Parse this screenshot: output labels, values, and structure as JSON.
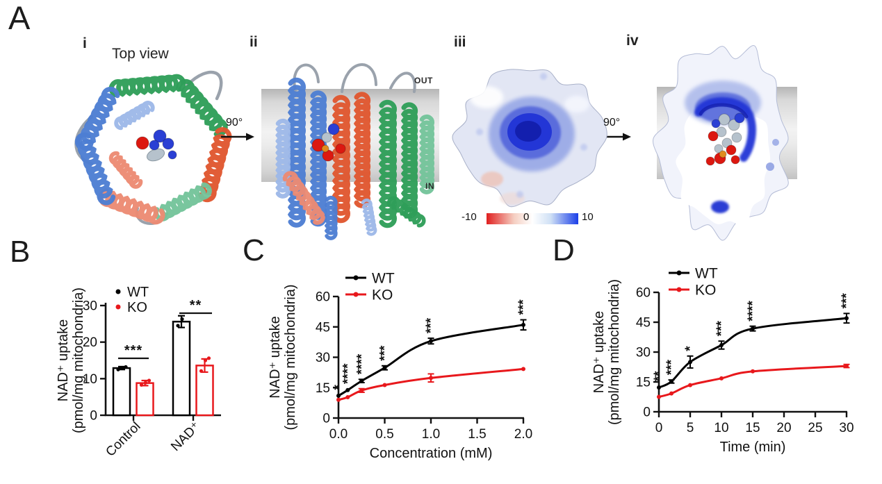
{
  "panel_a": {
    "label": "A",
    "views": [
      {
        "index": "i",
        "title": "Top view"
      },
      {
        "index": "ii",
        "out_label": "OUT",
        "in_label": "IN"
      },
      {
        "index": "iii",
        "colorbar": {
          "min": "-10",
          "mid": "0",
          "max": "10"
        }
      },
      {
        "index": "iv"
      }
    ],
    "rotations": [
      {
        "label": "90°"
      },
      {
        "label": "90°"
      }
    ],
    "colors": {
      "ribbon_green": "#2f9e58",
      "ribbon_green_light": "#74c49a",
      "ribbon_blue": "#4d7ed2",
      "ribbon_blue_light": "#9db8e8",
      "ribbon_red": "#e0562f",
      "ribbon_salmon": "#ec8a72",
      "loop_gray": "#9aa2ac",
      "ligand_blue": "#2a3fd4",
      "ligand_red": "#dc1810",
      "ligand_gray": "#b6c2cc",
      "ligand_orange": "#e08b1e",
      "surface_pore_blue": "#2336d6",
      "surface_light": "#e2e6f4",
      "membrane_gray": "#cfcfcf",
      "scale_negative": "#e01f1f",
      "scale_positive": "#1b3fe8"
    }
  },
  "chart_data": [
    {
      "type": "bar",
      "panel_label": "B",
      "ylabel_line1": "NAD⁺ uptake",
      "ylabel_line2": "(pmol/mg mitochondria)",
      "yticks": [
        "0",
        "10",
        "20",
        "30"
      ],
      "ylim": [
        0,
        30
      ],
      "categories": [
        "Control",
        "NAD⁺"
      ],
      "series": [
        {
          "name": "WT",
          "color": "#000000",
          "values": [
            12.9,
            25.6
          ],
          "errors": [
            0.4,
            1.6
          ],
          "points": [
            [
              12.5,
              12.9,
              13.2
            ],
            [
              24.5,
              26.3
            ]
          ]
        },
        {
          "name": "KO",
          "color": "#e8181c",
          "values": [
            8.8,
            13.6
          ],
          "errors": [
            0.7,
            1.8
          ],
          "points": [
            [
              8.3,
              8.9,
              9.5
            ],
            [
              12.1,
              15.0,
              15.6
            ]
          ]
        }
      ],
      "significance": [
        {
          "category": "Control",
          "label": "***"
        },
        {
          "category": "NAD⁺",
          "label": "**"
        }
      ]
    },
    {
      "type": "line",
      "panel_label": "C",
      "xlabel": "Concentration (mM)",
      "ylabel_line1": "NAD⁺ uptake",
      "ylabel_line2": "(pmol/mg mitochondria)",
      "xticks": [
        "0.0",
        "0.5",
        "1.0",
        "1.5",
        "2.0"
      ],
      "xtick_values": [
        0,
        0.5,
        1,
        1.5,
        2
      ],
      "yticks": [
        "0",
        "15",
        "30",
        "45",
        "60"
      ],
      "ylim": [
        0,
        60
      ],
      "xlim": [
        0,
        2
      ],
      "x": [
        0,
        0.1,
        0.25,
        0.5,
        1,
        2
      ],
      "series": [
        {
          "name": "WT",
          "color": "#000000",
          "values": [
            11,
            13.8,
            18.3,
            24.8,
            38,
            46
          ],
          "errors": [
            0.5,
            0.6,
            0.8,
            1.0,
            1.4,
            2.5
          ]
        },
        {
          "name": "KO",
          "color": "#e8181c",
          "values": [
            9,
            10.3,
            13.6,
            16.3,
            19.8,
            24.2
          ],
          "errors": [
            0.4,
            0.4,
            0.9,
            0.6,
            2.0,
            0.5
          ]
        }
      ],
      "significance": [
        {
          "x": 0,
          "label": "*"
        },
        {
          "x": 0.1,
          "label": "****"
        },
        {
          "x": 0.25,
          "label": "****"
        },
        {
          "x": 0.5,
          "label": "***"
        },
        {
          "x": 1,
          "label": "***"
        },
        {
          "x": 2,
          "label": "***"
        }
      ]
    },
    {
      "type": "line",
      "panel_label": "D",
      "xlabel": "Time (min)",
      "ylabel_line1": "NAD⁺ uptake",
      "ylabel_line2": "(pmol/mg mitochondria)",
      "xticks": [
        "0",
        "5",
        "10",
        "15",
        "20",
        "25",
        "30"
      ],
      "xtick_values": [
        0,
        5,
        10,
        15,
        20,
        25,
        30
      ],
      "yticks": [
        "0",
        "15",
        "30",
        "45",
        "60"
      ],
      "ylim": [
        0,
        60
      ],
      "xlim": [
        0,
        30
      ],
      "x": [
        0,
        2,
        5,
        10,
        15,
        30
      ],
      "series": [
        {
          "name": "WT",
          "color": "#000000",
          "values": [
            12.2,
            15.2,
            25,
            33.5,
            41.8,
            47
          ],
          "errors": [
            0.6,
            0.8,
            3.0,
            2.0,
            1.2,
            2.4
          ]
        },
        {
          "name": "KO",
          "color": "#e8181c",
          "values": [
            7.5,
            9.2,
            13.4,
            16.8,
            20.3,
            23
          ],
          "errors": [
            0.4,
            0.5,
            0.7,
            0.6,
            0.6,
            0.8
          ]
        }
      ],
      "significance": [
        {
          "x": 0,
          "label": "**"
        },
        {
          "x": 2,
          "label": "***"
        },
        {
          "x": 5,
          "label": "*"
        },
        {
          "x": 10,
          "label": "***"
        },
        {
          "x": 15,
          "label": "****"
        },
        {
          "x": 30,
          "label": "***"
        }
      ]
    }
  ]
}
